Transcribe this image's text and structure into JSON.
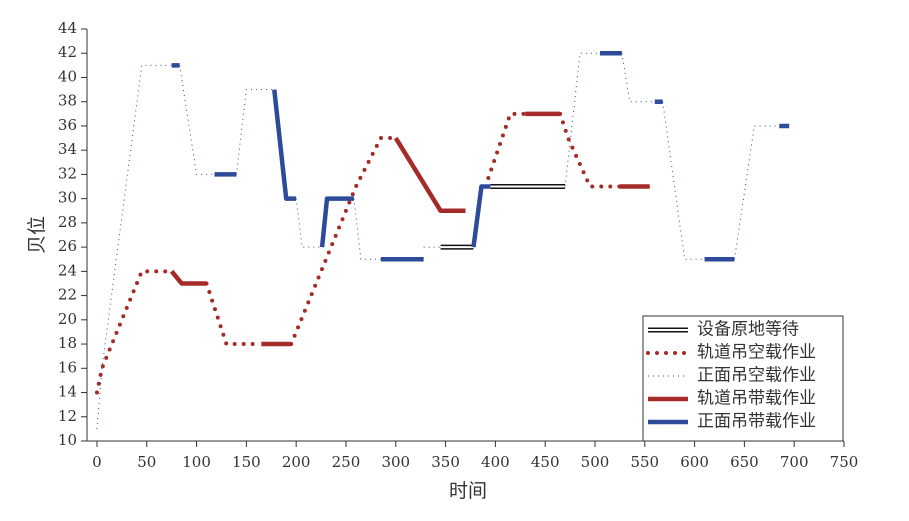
{
  "chart_data": {
    "type": "line",
    "xlabel": "时间",
    "ylabel": "贝位",
    "xlim": [
      -10,
      750
    ],
    "ylim": [
      10,
      44
    ],
    "xticks": [
      0,
      50,
      100,
      150,
      200,
      250,
      300,
      350,
      400,
      450,
      500,
      550,
      600,
      650,
      700,
      750
    ],
    "yticks": [
      10,
      12,
      14,
      16,
      18,
      20,
      22,
      24,
      26,
      28,
      30,
      32,
      34,
      36,
      38,
      40,
      42,
      44
    ],
    "legend": "lower right",
    "series": [
      {
        "name": "设备原地等待",
        "color": "#111111",
        "line_style": "outline",
        "x": [
          345,
          378,
          null,
          395,
          470
        ],
        "values": [
          26,
          26,
          null,
          31,
          31
        ]
      },
      {
        "name": "轨道吊空载作业",
        "color": "#a52a2a",
        "line_style": "dotted",
        "x": [
          0,
          5,
          45,
          75,
          null,
          110,
          130,
          165,
          null,
          195,
          260,
          285,
          300,
          null,
          390,
          415,
          430,
          null,
          465,
          473,
          495,
          525
        ],
        "values": [
          14,
          16,
          24,
          24,
          null,
          23,
          18,
          18,
          null,
          18,
          31,
          35,
          35,
          null,
          31,
          37,
          37,
          null,
          37,
          35,
          31,
          31
        ]
      },
      {
        "name": "正面吊空载作业",
        "color": "#2e4a9a",
        "line_style": "dashed",
        "x": [
          0,
          5,
          45,
          75,
          null,
          83,
          100,
          118,
          null,
          140,
          150,
          178,
          null,
          200,
          206,
          226,
          null,
          258,
          265,
          285,
          null,
          328,
          345,
          null,
          470,
          485,
          505,
          null,
          527,
          535,
          560,
          null,
          568,
          590,
          610,
          null,
          640,
          660,
          685
        ],
        "values": [
          11,
          16,
          41,
          41,
          null,
          41,
          32,
          32,
          null,
          32,
          39,
          39,
          null,
          30,
          26,
          26,
          null,
          30,
          25,
          25,
          null,
          26,
          26,
          null,
          31,
          42,
          42,
          null,
          42,
          38,
          38,
          null,
          38,
          25,
          25,
          null,
          25,
          36,
          36
        ]
      },
      {
        "name": "轨道吊带载作业",
        "color": "#a52a2a",
        "line_style": "solid",
        "x": [
          75,
          85,
          110,
          null,
          165,
          195,
          null,
          300,
          345,
          370,
          null,
          430,
          465,
          null,
          525,
          555
        ],
        "values": [
          24,
          23,
          23,
          null,
          18,
          18,
          null,
          35,
          29,
          29,
          null,
          37,
          37,
          null,
          31,
          31
        ]
      },
      {
        "name": "正面吊带载作业",
        "color": "#2e4a9a",
        "line_style": "solid",
        "x": [
          75,
          83,
          null,
          118,
          140,
          null,
          178,
          190,
          200,
          null,
          226,
          231,
          258,
          null,
          285,
          328,
          null,
          378,
          386,
          395,
          null,
          505,
          527,
          null,
          560,
          568,
          null,
          610,
          640,
          null,
          685,
          695
        ],
        "values": [
          41,
          41,
          null,
          32,
          32,
          null,
          39,
          30,
          30,
          null,
          26,
          30,
          30,
          null,
          25,
          25,
          null,
          26,
          31,
          31,
          null,
          42,
          42,
          null,
          38,
          38,
          null,
          25,
          25,
          null,
          36,
          36
        ]
      }
    ]
  }
}
